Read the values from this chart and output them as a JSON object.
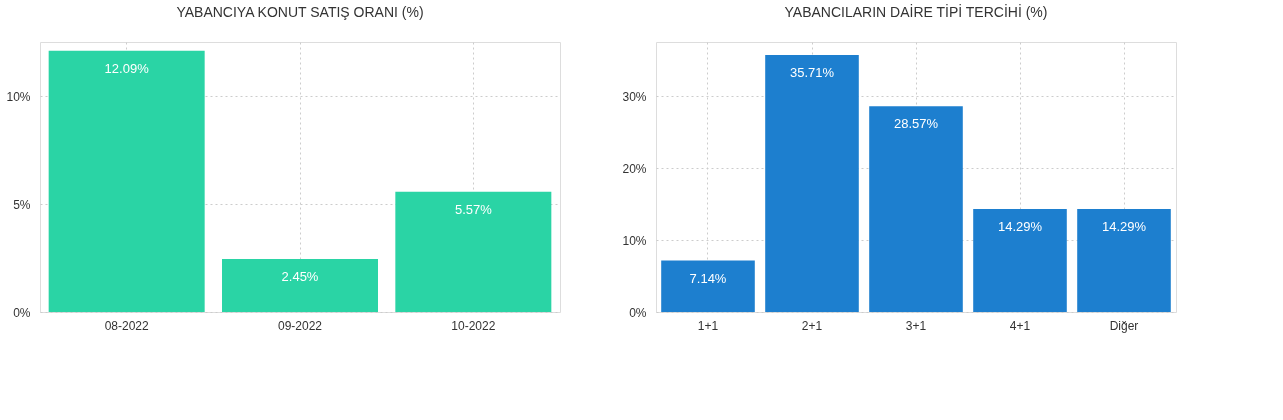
{
  "chart_data": [
    {
      "type": "bar",
      "title": "YABANCIYA KONUT SATIŞ ORANI (%)",
      "categories": [
        "08-2022",
        "09-2022",
        "10-2022"
      ],
      "values": [
        12.09,
        2.45,
        5.57
      ],
      "color": "#2ad4a5",
      "value_labels": [
        "12.09%",
        "2.45%",
        "5.57%"
      ],
      "ylim": [
        0,
        12.5
      ],
      "yticks": [
        {
          "value": 0,
          "label": "0%"
        },
        {
          "value": 5,
          "label": "5%"
        },
        {
          "value": 10,
          "label": "10%"
        }
      ],
      "grid": true
    },
    {
      "type": "bar",
      "title": "YABANCILARIN DAİRE TİPİ TERCİHİ (%)",
      "categories": [
        "1+1",
        "2+1",
        "3+1",
        "4+1",
        "Diğer"
      ],
      "values": [
        7.14,
        35.71,
        28.57,
        14.29,
        14.29
      ],
      "color": "#1d7fcf",
      "value_labels": [
        "7.14%",
        "35.71%",
        "28.57%",
        "14.29%",
        "14.29%"
      ],
      "ylim": [
        0,
        37.5
      ],
      "yticks": [
        {
          "value": 0,
          "label": "0%"
        },
        {
          "value": 10,
          "label": "10%"
        },
        {
          "value": 20,
          "label": "20%"
        },
        {
          "value": 30,
          "label": "30%"
        }
      ],
      "grid": true
    }
  ]
}
